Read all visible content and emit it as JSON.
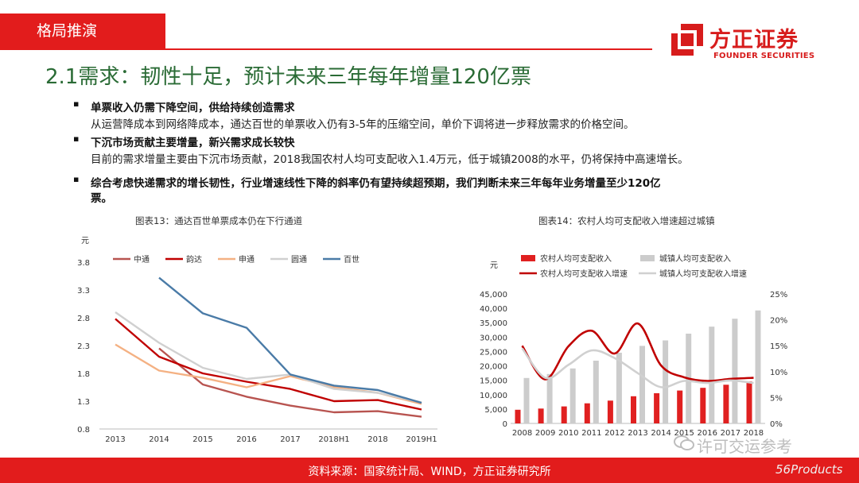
{
  "header": {
    "section_tab": "格局推演"
  },
  "logo": {
    "name_cn": "方正证券",
    "name_en": "FOUNDER SECURITIES",
    "color": "#d71c1c"
  },
  "title": "2.1需求：韧性十足，预计未来三年每年增量120亿票",
  "bullets": [
    {
      "head": "单票收入仍需下降空间，供给持续创造需求",
      "text": "从运营降成本到网络降成本，通达百世的单票收入仍有3-5年的压缩空间，单价下调将进一步释放需求的价格空间。"
    },
    {
      "head": "下沉市场贡献主要增量，新兴需求成长较快",
      "text": "目前的需求增量主要由下沉市场贡献，2018我国农村人均可支配收入1.4万元，低于城镇2008的水平，仍将保持中高速增长。"
    },
    {
      "head_line1": "综合考虑快递需求的增长韧性，行业增速线性下降的斜率仍有望持续超预期，我们判断未来三年每年业务增量至少120亿",
      "head_line2": "票。"
    }
  ],
  "footer": {
    "source": "资料来源：国家统计局、WIND，方正证券研究所"
  },
  "watermark": {
    "text": "许可交运参考",
    "brand": "56Products"
  },
  "chart_data": [
    {
      "type": "line",
      "title": "图表13：通达百世单票成本仍在下行通道",
      "ylabel": "元",
      "x": [
        "2013",
        "2014",
        "2015",
        "2016",
        "2017",
        "2018H1",
        "2018",
        "2019H1"
      ],
      "ylim": [
        0.8,
        3.8
      ],
      "yticks": [
        "0.8",
        "1.3",
        "1.8",
        "2.3",
        "2.8",
        "3.3",
        "3.8"
      ],
      "legend_position": "top",
      "series": [
        {
          "name": "中通",
          "color": "#b85450",
          "values": [
            null,
            2.25,
            1.6,
            1.38,
            1.22,
            1.1,
            1.12,
            1.02
          ]
        },
        {
          "name": "韵达",
          "color": "#c00000",
          "values": [
            2.78,
            2.1,
            1.8,
            1.65,
            1.52,
            1.3,
            1.32,
            1.15
          ]
        },
        {
          "name": "申通",
          "color": "#f4b183",
          "values": [
            2.32,
            1.85,
            1.72,
            1.55,
            1.75,
            1.55,
            1.45,
            1.25
          ]
        },
        {
          "name": "圆通",
          "color": "#d0d0d0",
          "values": [
            2.9,
            2.35,
            1.9,
            1.7,
            1.78,
            1.52,
            1.45,
            1.28
          ]
        },
        {
          "name": "百世",
          "color": "#4a7ba7",
          "values": [
            null,
            3.52,
            2.88,
            2.62,
            1.78,
            1.58,
            1.5,
            1.27
          ]
        }
      ]
    },
    {
      "type": "bar",
      "title": "图表14：农村人均可支配收入增速超过城镇",
      "ylabel": "元",
      "categories": [
        "2008",
        "2009",
        "2010",
        "2011",
        "2012",
        "2013",
        "2014",
        "2015",
        "2016",
        "2017",
        "2018"
      ],
      "ylim": [
        0,
        45000
      ],
      "yticks": [
        "0",
        "5,000",
        "10,000",
        "15,000",
        "20,000",
        "25,000",
        "30,000",
        "35,000",
        "40,000",
        "45,000"
      ],
      "y2lim": [
        0,
        0.25
      ],
      "y2ticks": [
        "0%",
        "5%",
        "10%",
        "15%",
        "20%",
        "25%"
      ],
      "legend_position": "top",
      "series": [
        {
          "name": "农村人均可支配收入",
          "kind": "bar",
          "color": "#e02020",
          "values": [
            4761,
            5153,
            5919,
            6977,
            7917,
            9430,
            10489,
            11422,
            12363,
            13432,
            14617
          ]
        },
        {
          "name": "城镇人均可支配收入",
          "kind": "bar",
          "color": "#cccccc",
          "values": [
            15781,
            17175,
            19109,
            21810,
            24565,
            26955,
            28844,
            31195,
            33616,
            36396,
            39251
          ]
        },
        {
          "name": "农村人均可支配收入增速",
          "kind": "line",
          "axis": "right",
          "color": "#c00000",
          "values": [
            0.15,
            0.085,
            0.149,
            0.179,
            0.135,
            0.193,
            0.112,
            0.089,
            0.082,
            0.086,
            0.088
          ]
        },
        {
          "name": "城镇人均可支配收入增速",
          "kind": "line",
          "axis": "right",
          "color": "#d0d0d0",
          "values": [
            0.145,
            0.088,
            0.113,
            0.141,
            0.126,
            0.097,
            0.07,
            0.082,
            0.078,
            0.083,
            0.078
          ]
        }
      ]
    }
  ]
}
